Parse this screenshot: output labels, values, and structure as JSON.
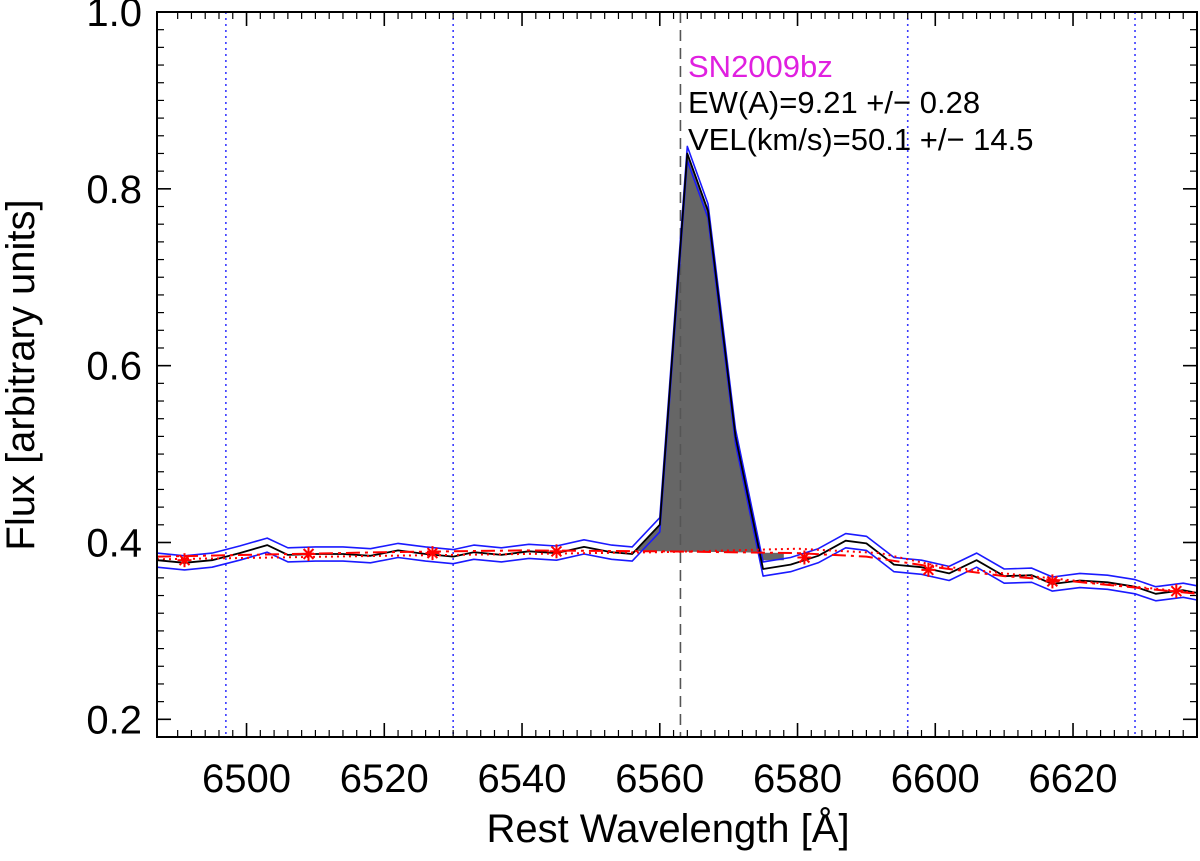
{
  "chart_data": {
    "type": "line",
    "xlabel": "Rest Wavelength [Å]",
    "ylabel": "Flux [arbitrary units]",
    "xlim": [
      6487,
      6638
    ],
    "ylim": [
      0.18,
      1.0
    ],
    "xticks": [
      6500,
      6520,
      6540,
      6560,
      6580,
      6600,
      6620
    ],
    "xtick_labels": [
      "6500",
      "6520",
      "6540",
      "6560",
      "6580",
      "6600",
      "6620"
    ],
    "yticks": [
      0.2,
      0.4,
      0.6,
      0.8,
      1.0
    ],
    "ytick_labels": [
      "0.2",
      "0.4",
      "0.6",
      "0.8",
      "1.0"
    ],
    "annotations": {
      "name": "SN2009bz",
      "ew": "EW(A)=9.21 +/− 0.28",
      "vel": "VEL(km/s)=50.1 +/− 14.5"
    },
    "colors": {
      "name": "#e020e0",
      "spectrum": "#000000",
      "error": "#1a1aff",
      "fill": "#666666",
      "continuum": "#ff0000",
      "regions": "#3a3aff",
      "center": "#555555"
    },
    "center_line": 6563,
    "continuum_regions": [
      6497,
      6530,
      6596,
      6629
    ],
    "spectrum": {
      "x": [
        6487,
        6491,
        6495,
        6499,
        6503,
        6506,
        6510,
        6514,
        6518,
        6522,
        6526,
        6530,
        6533,
        6537,
        6541,
        6545,
        6549,
        6553,
        6556,
        6560,
        6564,
        6567,
        6571,
        6575,
        6579,
        6583,
        6587,
        6590,
        6594,
        6598,
        6602,
        6606,
        6610,
        6614,
        6617,
        6621,
        6625,
        6629,
        6632,
        6636,
        6638
      ],
      "y": [
        0.38,
        0.377,
        0.38,
        0.388,
        0.397,
        0.386,
        0.387,
        0.387,
        0.385,
        0.391,
        0.387,
        0.384,
        0.389,
        0.386,
        0.39,
        0.388,
        0.395,
        0.389,
        0.387,
        0.42,
        0.84,
        0.775,
        0.52,
        0.37,
        0.375,
        0.385,
        0.402,
        0.399,
        0.375,
        0.372,
        0.365,
        0.38,
        0.362,
        0.363,
        0.353,
        0.357,
        0.355,
        0.35,
        0.342,
        0.346,
        0.343
      ],
      "err": 0.008
    },
    "continuum_fit": {
      "x": [
        6487,
        6500,
        6520,
        6540,
        6560,
        6580,
        6590,
        6600,
        6610,
        6620,
        6638
      ],
      "y": [
        0.384,
        0.386,
        0.389,
        0.391,
        0.39,
        0.388,
        0.384,
        0.372,
        0.362,
        0.356,
        0.342
      ]
    },
    "continuum_dotted": {
      "x": [
        6487,
        6520,
        6560,
        6580,
        6592,
        6600,
        6610,
        6620,
        6638
      ],
      "y": [
        0.381,
        0.385,
        0.389,
        0.393,
        0.388,
        0.374,
        0.365,
        0.357,
        0.343
      ]
    },
    "continuum_points": {
      "x": [
        6491,
        6509,
        6527,
        6545,
        6581,
        6599,
        6617,
        6635
      ],
      "y": [
        0.38,
        0.387,
        0.388,
        0.39,
        0.383,
        0.369,
        0.356,
        0.345
      ]
    },
    "fill_region": {
      "x": [
        6556,
        6560,
        6564,
        6567,
        6571,
        6575,
        6578
      ],
      "y": [
        0.387,
        0.42,
        0.84,
        0.775,
        0.52,
        0.38,
        0.38
      ]
    }
  }
}
